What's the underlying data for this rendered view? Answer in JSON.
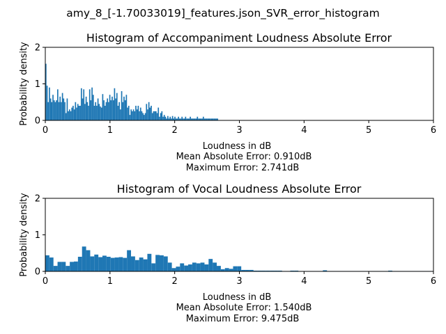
{
  "figure": {
    "suptitle": "amy_8_[-1.70033019]_features.json_SVR_error_histogram"
  },
  "colors": {
    "bar": "#1f77b4",
    "axis": "#000000",
    "background": "#ffffff"
  },
  "chart_data": [
    {
      "type": "bar",
      "title": "Histogram of Accompaniment Loudness Absolute Error",
      "xlabel": "Loudness in dB",
      "ylabel": "Probability density",
      "annotations": [
        "Mean Absolute Error: 0.910dB",
        "Maximum Error: 2.741dB"
      ],
      "xlim": [
        0,
        6
      ],
      "ylim": [
        0,
        2
      ],
      "xticks": [
        "0",
        "1",
        "2",
        "3",
        "4",
        "5",
        "6"
      ],
      "yticks": [
        "0",
        "1",
        "2"
      ],
      "bin_width": 0.0183,
      "bin_start": 0,
      "values": [
        1.55,
        0.95,
        0.5,
        0.9,
        0.6,
        0.5,
        0.7,
        0.55,
        0.5,
        0.55,
        0.85,
        0.5,
        0.65,
        0.5,
        0.75,
        0.6,
        0.5,
        0.2,
        0.6,
        0.25,
        0.3,
        0.25,
        0.35,
        0.4,
        0.3,
        0.5,
        0.35,
        0.45,
        0.4,
        0.4,
        0.88,
        0.6,
        0.85,
        0.45,
        0.65,
        0.5,
        0.4,
        0.85,
        0.55,
        0.9,
        0.7,
        0.4,
        0.5,
        0.4,
        0.6,
        0.45,
        0.38,
        0.35,
        0.72,
        0.55,
        0.4,
        0.5,
        0.6,
        0.5,
        0.7,
        0.55,
        0.65,
        0.55,
        0.88,
        0.6,
        0.75,
        0.4,
        0.5,
        0.3,
        0.8,
        0.5,
        0.65,
        0.55,
        0.7,
        0.35,
        0.4,
        0.15,
        0.3,
        0.25,
        0.3,
        0.25,
        0.4,
        0.3,
        0.4,
        0.25,
        0.35,
        0.25,
        0.2,
        0.15,
        0.2,
        0.45,
        0.3,
        0.5,
        0.35,
        0.4,
        0.2,
        0.25,
        0.25,
        0.25,
        0.2,
        0.35,
        0.1,
        0.2,
        0.25,
        0.1,
        0.15,
        0.1,
        0.05,
        0.12,
        0.05,
        0.1,
        0.05,
        0.12,
        0.05,
        0.1,
        0.05,
        0.05,
        0.1,
        0.05,
        0.05,
        0.1,
        0.05,
        0.05,
        0.1,
        0.05,
        0.05,
        0.05,
        0.1,
        0.05,
        0.05,
        0.05,
        0.05,
        0.05,
        0.1,
        0.05,
        0.05,
        0.05,
        0.05,
        0.1,
        0.05,
        0.05,
        0.05,
        0.05,
        0.05,
        0.05,
        0.05,
        0.05,
        0.05,
        0.05,
        0.05,
        0.05
      ]
    },
    {
      "type": "bar",
      "title": "Histogram of Vocal Loudness Absolute Error",
      "xlabel": "Loudness in dB",
      "ylabel": "Probability density",
      "annotations": [
        "Mean Absolute Error: 1.540dB",
        "Maximum Error: 9.475dB"
      ],
      "xlim": [
        0,
        6
      ],
      "ylim": [
        0,
        2
      ],
      "xticks": [
        "0",
        "1",
        "2",
        "3",
        "4",
        "5",
        "6"
      ],
      "yticks": [
        "0",
        "1",
        "2"
      ],
      "bin_width": 0.0631,
      "bin_start": 0,
      "values": [
        0.44,
        0.38,
        0.15,
        0.26,
        0.26,
        0.15,
        0.26,
        0.27,
        0.4,
        0.68,
        0.58,
        0.41,
        0.46,
        0.39,
        0.43,
        0.4,
        0.37,
        0.38,
        0.39,
        0.37,
        0.58,
        0.41,
        0.31,
        0.38,
        0.33,
        0.48,
        0.22,
        0.45,
        0.44,
        0.41,
        0.24,
        0.09,
        0.13,
        0.22,
        0.16,
        0.19,
        0.24,
        0.22,
        0.24,
        0.19,
        0.34,
        0.24,
        0.15,
        0.06,
        0.09,
        0.07,
        0.14,
        0.14,
        0.04,
        0.04,
        0.04,
        0.02,
        0.02,
        0.02,
        0.02,
        0.02,
        0.02,
        0.02,
        0.01,
        0.01,
        0.02,
        0.02,
        0.01,
        0.01,
        0.01,
        0.01,
        0.01,
        0.01,
        0.03,
        0.01,
        0.01,
        0.01,
        0.01,
        0.01,
        0.01,
        0.01,
        0.01,
        0.01,
        0.01,
        0.01,
        0.01,
        0.01,
        0.01,
        0.01,
        0.02,
        0.01,
        0.01,
        0.01,
        0.01,
        0.01,
        0.01,
        0.01,
        0.01,
        0.01,
        0.01
      ]
    }
  ]
}
